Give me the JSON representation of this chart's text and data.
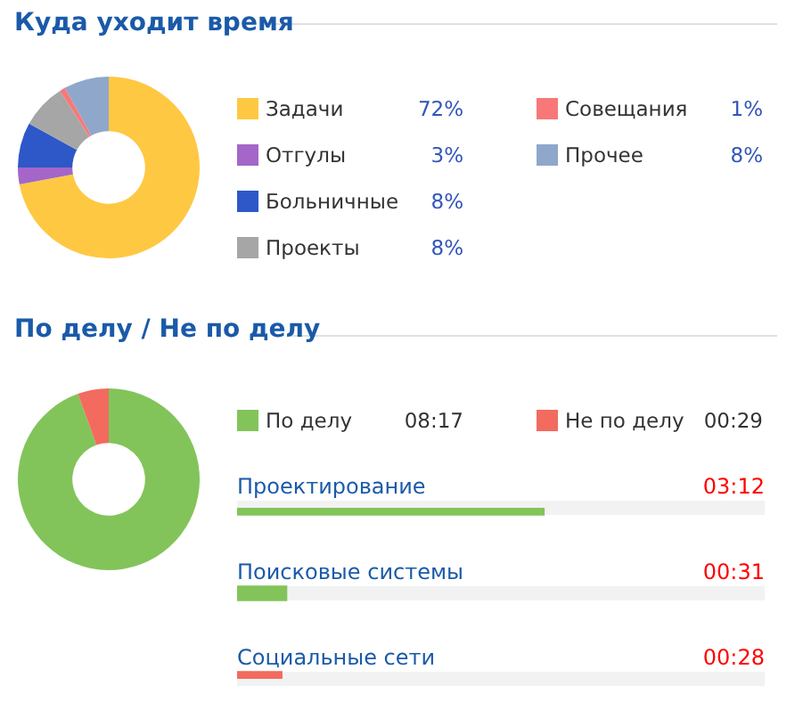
{
  "chart_data": [
    {
      "type": "donut",
      "title": "Куда уходит время",
      "categories": [
        "Задачи",
        "Отгулы",
        "Больничные",
        "Проекты",
        "Совещания",
        "Прочее"
      ],
      "values": [
        72,
        3,
        8,
        8,
        1,
        8
      ],
      "colors": [
        "#ffc843",
        "#a466c8",
        "#2e57c8",
        "#a6a6a6",
        "#f87878",
        "#8fa7cb"
      ],
      "value_labels": [
        "72%",
        "3%",
        "8%",
        "8%",
        "1%",
        "8%"
      ],
      "legend": "right"
    },
    {
      "type": "donut",
      "title": "По делу / Не по делу",
      "categories": [
        "По делу",
        "Не по делу"
      ],
      "values": [
        8.283,
        0.483
      ],
      "colors": [
        "#82c45a",
        "#f26b5e"
      ],
      "value_labels": [
        "08:17",
        "00:29"
      ],
      "legend": "right"
    },
    {
      "type": "bar",
      "orientation": "horizontal",
      "xlim": [
        0,
        5.5
      ],
      "categories": [
        "Проектирование",
        "Поисковые системы",
        "Социальные сети"
      ],
      "values": [
        3.2,
        0.517,
        0.467
      ],
      "colors": [
        "#82c45a",
        "#82c45a",
        "#f26b5e"
      ],
      "value_labels": [
        "03:12",
        "00:31",
        "00:28"
      ]
    }
  ]
}
